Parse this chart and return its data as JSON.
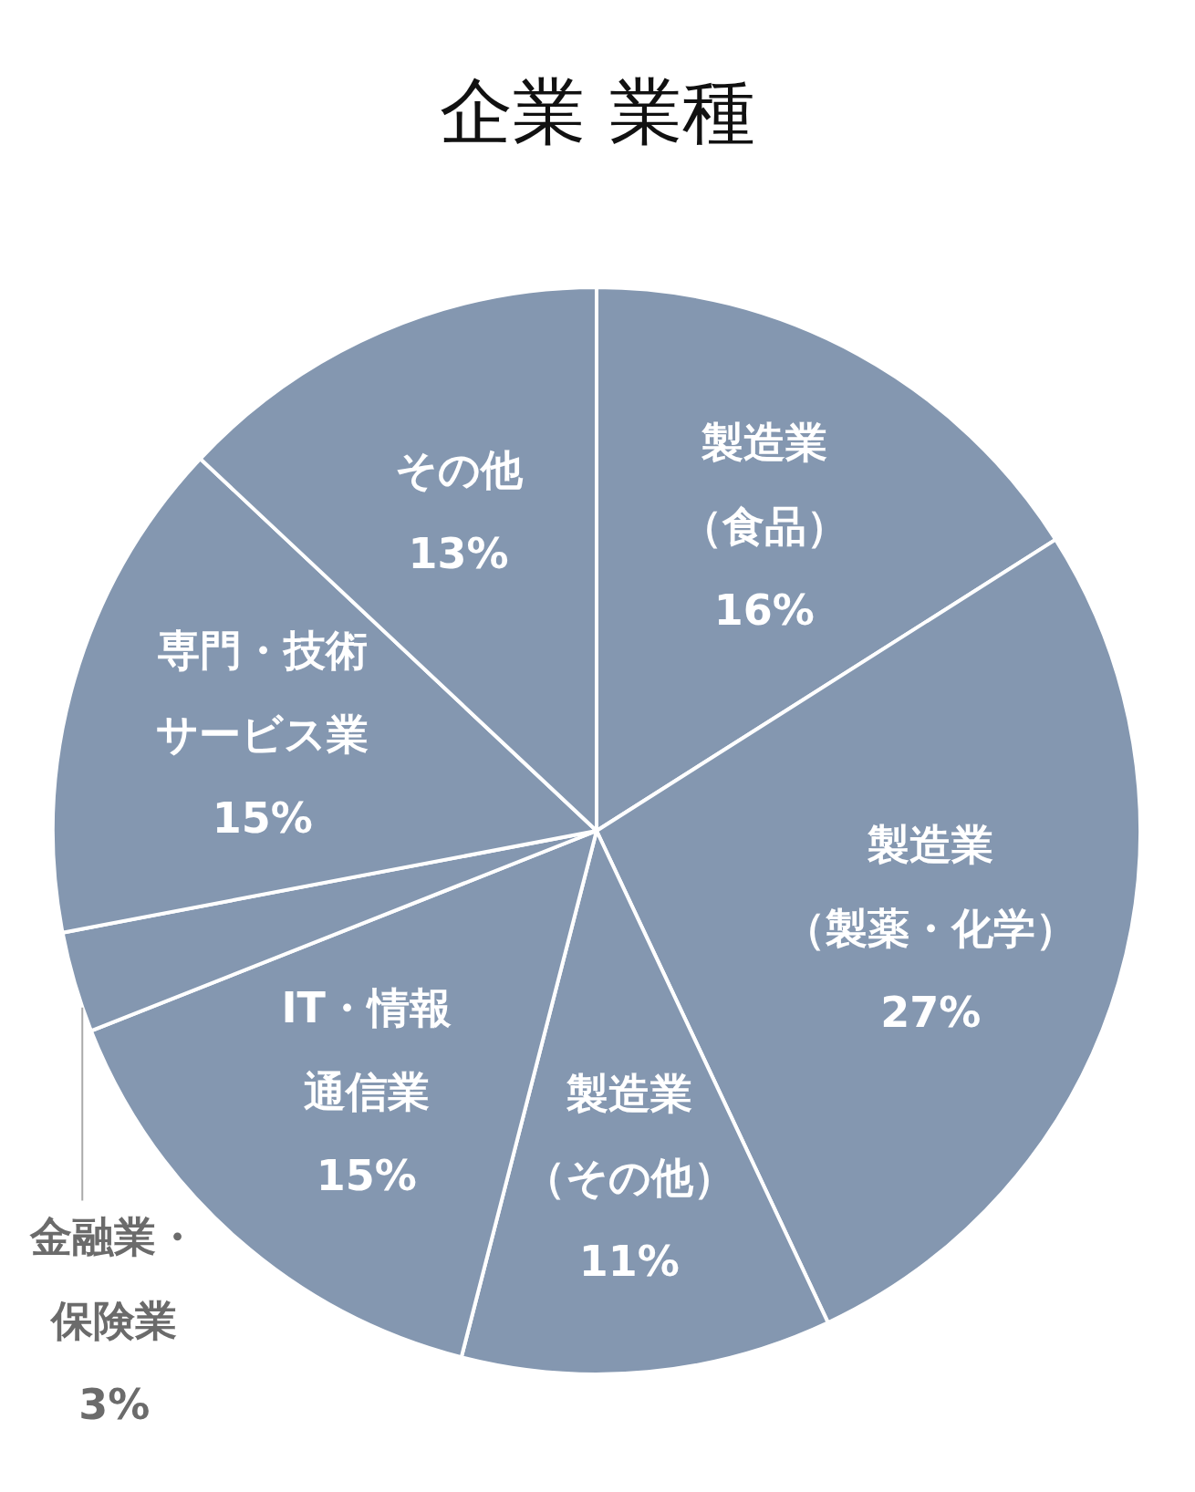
{
  "chart_data": {
    "type": "pie",
    "title": "企業 業種",
    "categories": [
      "製造業（食品）",
      "製造業（製薬・化学）",
      "製造業（その他）",
      "IT・情報通信業",
      "金融業・保険業",
      "専門・技術サービス業",
      "その他"
    ],
    "values": [
      16,
      27,
      11,
      15,
      3,
      15,
      13
    ],
    "value_labels": [
      "16%",
      "27%",
      "11%",
      "15%",
      "3%",
      "15%",
      "13%"
    ],
    "colors": [
      "#8497b0",
      "#8497b0",
      "#8497b0",
      "#8497b0",
      "#8497b0",
      "#8497b0",
      "#8497b0"
    ]
  }
}
